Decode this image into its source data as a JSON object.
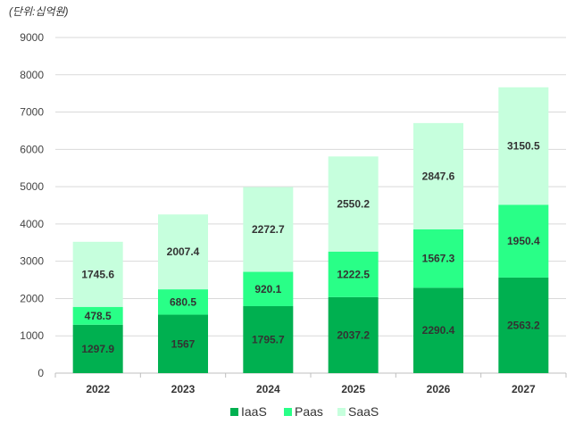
{
  "unit_label": "(단위:십억원)",
  "chart_data": {
    "type": "bar",
    "stacked": true,
    "categories": [
      "2022",
      "2023",
      "2024",
      "2025",
      "2026",
      "2027"
    ],
    "series": [
      {
        "name": "IaaS",
        "color": "#00b050",
        "values": [
          1297.9,
          1567,
          1795.7,
          2037.2,
          2290.4,
          2563.2
        ],
        "labels": [
          "1297.9",
          "1567",
          "1795.7",
          "2037.2",
          "2290.4",
          "2563.2"
        ]
      },
      {
        "name": "Paas",
        "color": "#29ff87",
        "values": [
          478.5,
          680.5,
          920.1,
          1222.5,
          1567.3,
          1950.4
        ],
        "labels": [
          "478.5",
          "680.5",
          "920.1",
          "1222.5",
          "1567.3",
          "1950.4"
        ]
      },
      {
        "name": "SaaS",
        "color": "#c6ffdd",
        "values": [
          1745.6,
          2007.4,
          2272.7,
          2550.2,
          2847.6,
          3150.5
        ],
        "labels": [
          "1745.6",
          "2007.4",
          "2272.7",
          "2550.2",
          "2847.6",
          "3150.5"
        ]
      }
    ],
    "ylim": [
      0,
      9000
    ],
    "yticks": [
      0,
      1000,
      2000,
      3000,
      4000,
      5000,
      6000,
      7000,
      8000,
      9000
    ],
    "ytick_labels": [
      "0",
      "1000",
      "2000",
      "3000",
      "4000",
      "5000",
      "6000",
      "7000",
      "8000",
      "9000"
    ],
    "legend_position": "bottom",
    "grid": true
  }
}
